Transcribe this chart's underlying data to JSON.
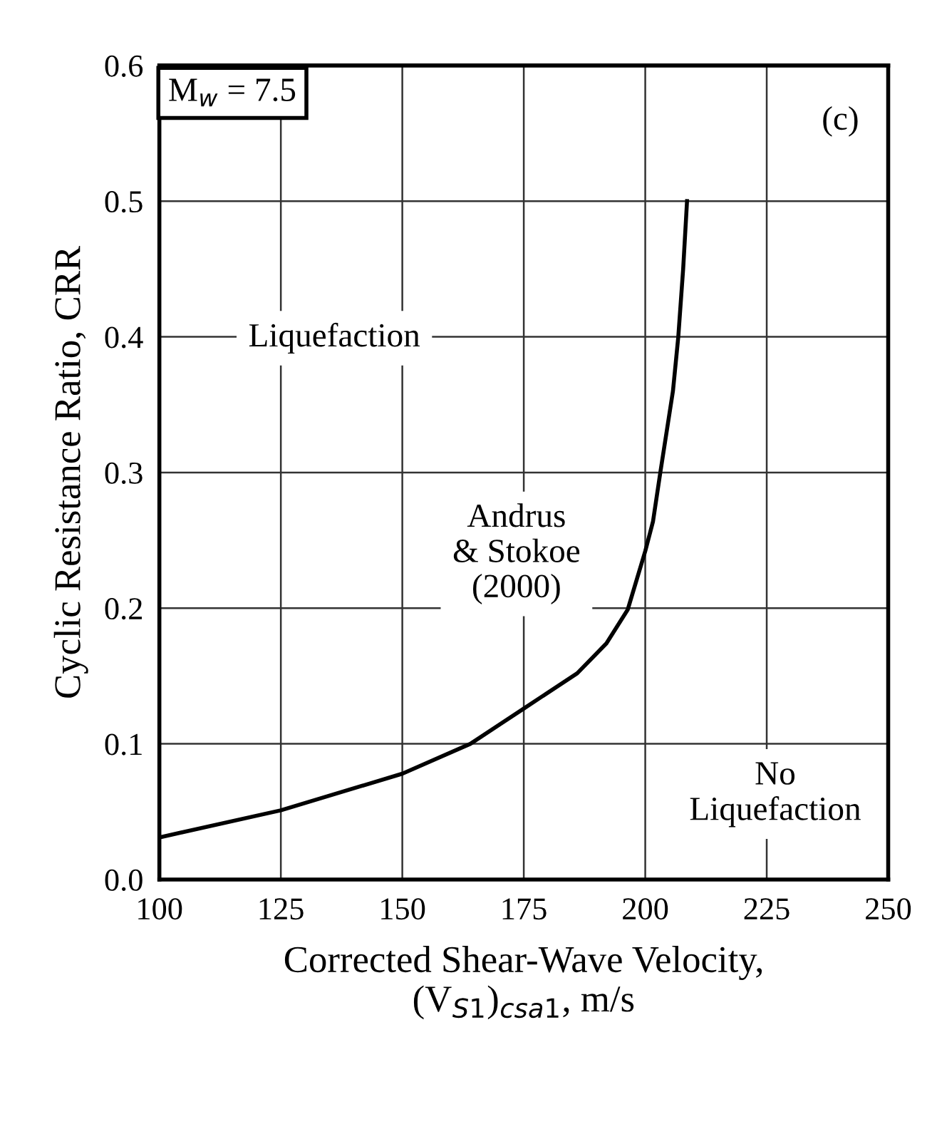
{
  "chart_data": {
    "type": "line",
    "xlabel": "Corrected Shear-Wave Velocity,\n(V$_{S1}$)$_{csa1}$, m/s",
    "ylabel": "Cyclic Resistance Ratio, CRR",
    "xlim": [
      100,
      250
    ],
    "xticks": [
      100,
      125,
      150,
      175,
      200,
      225,
      250
    ],
    "ylim": [
      0,
      0.6
    ],
    "yticks": [
      {
        "value": 0,
        "label": "0.0"
      },
      {
        "value": 0.1,
        "label": "0.1"
      },
      {
        "value": 0.2,
        "label": "0.2"
      },
      {
        "value": 0.3,
        "label": "0.3"
      },
      {
        "value": 0.4,
        "label": "0.4"
      },
      {
        "value": 0.5,
        "label": "0.5"
      },
      {
        "value": 0.6,
        "label": "0.6"
      }
    ],
    "grid": true,
    "marker": "none",
    "line_style": "solid",
    "series": [
      {
        "name": "Andrus\n& Stokoe\n(2000)",
        "color": "#000000",
        "x": [
          100,
          125,
          150,
          164,
          175,
          186,
          192,
          196.4,
          200,
          201.6,
          203.1,
          205.7,
          206.8,
          207.8,
          208.6
        ],
        "values": [
          0.031,
          0.051,
          0.078,
          0.1,
          0.126,
          0.152,
          0.174,
          0.199,
          0.242,
          0.264,
          0.3,
          0.36,
          0.4,
          0.45,
          0.5
        ]
      }
    ],
    "annotations": [
      "M$_{w}$ = 7.5",
      "(c)",
      "Liquefaction",
      "No\nLiquefaction"
    ]
  }
}
